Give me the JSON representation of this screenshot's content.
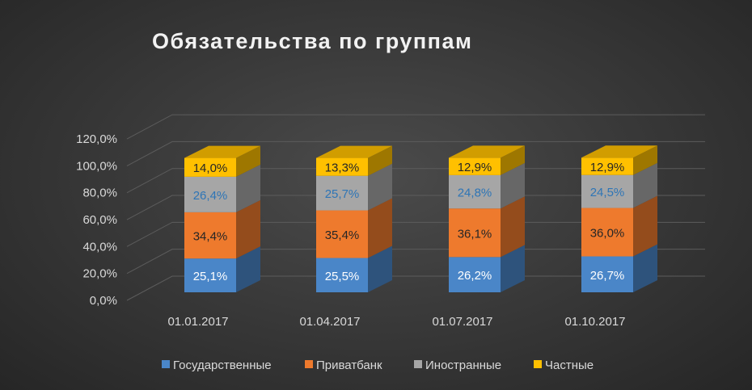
{
  "chart_data": {
    "type": "bar",
    "stacked": true,
    "three_d": true,
    "title": "Обязательства  по  группам",
    "categories": [
      "01.01.2017",
      "01.04.2017",
      "01.07.2017",
      "01.10.2017"
    ],
    "series": [
      {
        "name": "Государственные",
        "color": "#4a86c8",
        "label_color": "#ffffff",
        "values": [
          25.1,
          25.5,
          26.2,
          26.7
        ],
        "labels": [
          "25,1%",
          "25,5%",
          "26,2%",
          "26,7%"
        ]
      },
      {
        "name": "Приватбанк",
        "color": "#ee7a2d",
        "label_color": "#262626",
        "values": [
          34.4,
          35.4,
          36.1,
          36.0
        ],
        "labels": [
          "34,4%",
          "35,4%",
          "36,1%",
          "36,0%"
        ]
      },
      {
        "name": "Иностранные",
        "color": "#a6a6a6",
        "label_color": "#2e75b6",
        "values": [
          26.4,
          25.7,
          24.8,
          24.5
        ],
        "labels": [
          "26,4%",
          "25,7%",
          "24,8%",
          "24,5%"
        ]
      },
      {
        "name": "Частные",
        "color": "#ffc000",
        "label_color": "#262626",
        "values": [
          14.0,
          13.3,
          12.9,
          12.9
        ],
        "labels": [
          "14,0%",
          "13,3%",
          "12,9%",
          "12,9%"
        ]
      }
    ],
    "y_ticks": [
      "0,0%",
      "20,0%",
      "40,0%",
      "60,0%",
      "80,0%",
      "100,0%",
      "120,0%"
    ],
    "ylim": [
      0,
      120
    ],
    "grid": true,
    "legend": "bottom",
    "background": "#3b3b3b",
    "text_color": "#d9d9d9"
  }
}
